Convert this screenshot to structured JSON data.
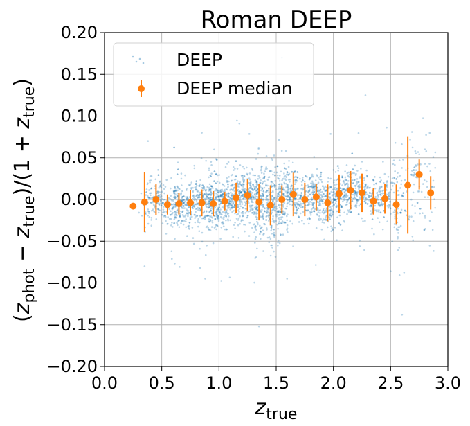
{
  "chart_data": {
    "type": "scatter",
    "title": "Roman DEEP",
    "xlabel": {
      "base": "z",
      "sub": "true"
    },
    "ylabel": {
      "parts": [
        {
          "t": "("
        },
        {
          "t": "z",
          "i": true
        },
        {
          "t": "phot",
          "sub": true
        },
        {
          "t": " − "
        },
        {
          "t": "z",
          "i": true
        },
        {
          "t": "true",
          "sub": true
        },
        {
          "t": ")/(1 + "
        },
        {
          "t": "z",
          "i": true
        },
        {
          "t": "true",
          "sub": true
        },
        {
          "t": ")"
        }
      ]
    },
    "xlim": [
      0.0,
      3.0
    ],
    "ylim": [
      -0.2,
      0.2
    ],
    "x_ticks": [
      0.0,
      0.5,
      1.0,
      1.5,
      2.0,
      2.5,
      3.0
    ],
    "x_tick_labels": [
      "0.0",
      "0.5",
      "1.0",
      "1.5",
      "2.0",
      "2.5",
      "3.0"
    ],
    "y_ticks": [
      0.2,
      0.15,
      0.1,
      0.05,
      0.0,
      -0.05,
      -0.1,
      -0.15,
      -0.2
    ],
    "y_tick_labels": [
      "0.20",
      "0.15",
      "0.10",
      "0.05",
      "0.00",
      "−0.05",
      "−0.10",
      "−0.15",
      "−0.20"
    ],
    "grid": true,
    "legend_position": "upper-left",
    "series": [
      {
        "name": "DEEP",
        "kind": "scatter-cloud",
        "color": "#1f77b4",
        "opacity": 0.3,
        "approx_count": 3000,
        "note_points": [
          {
            "x": 1.35,
            "y": -0.152
          },
          {
            "x": 2.6,
            "y": -0.138
          },
          {
            "x": 2.5,
            "y": -0.086
          },
          {
            "x": 0.35,
            "y": -0.08
          },
          {
            "x": 0.88,
            "y": -0.095
          },
          {
            "x": 2.28,
            "y": 0.125
          },
          {
            "x": 0.38,
            "y": 0.07
          },
          {
            "x": 0.85,
            "y": 0.08
          },
          {
            "x": 1.55,
            "y": 0.17
          },
          {
            "x": 0.4,
            "y": 0.028
          },
          {
            "x": 2.72,
            "y": 0.055
          },
          {
            "x": 2.8,
            "y": 0.06
          }
        ]
      },
      {
        "name": "DEEP median",
        "kind": "errorbar",
        "color": "#ff7f0e",
        "points": [
          {
            "x": 0.25,
            "y": -0.008,
            "err": 0.002
          },
          {
            "x": 0.35,
            "y": -0.003,
            "err": 0.036
          },
          {
            "x": 0.45,
            "y": 0.0,
            "err": 0.019
          },
          {
            "x": 0.55,
            "y": -0.006,
            "err": 0.012
          },
          {
            "x": 0.65,
            "y": -0.005,
            "err": 0.013
          },
          {
            "x": 0.75,
            "y": -0.004,
            "err": 0.015
          },
          {
            "x": 0.85,
            "y": -0.004,
            "err": 0.016
          },
          {
            "x": 0.95,
            "y": -0.005,
            "err": 0.015
          },
          {
            "x": 1.05,
            "y": -0.002,
            "err": 0.011
          },
          {
            "x": 1.15,
            "y": 0.002,
            "err": 0.018
          },
          {
            "x": 1.25,
            "y": 0.005,
            "err": 0.019
          },
          {
            "x": 1.35,
            "y": -0.003,
            "err": 0.022
          },
          {
            "x": 1.45,
            "y": -0.007,
            "err": 0.024
          },
          {
            "x": 1.55,
            "y": 0.0,
            "err": 0.017
          },
          {
            "x": 1.65,
            "y": 0.006,
            "err": 0.026
          },
          {
            "x": 1.75,
            "y": 0.0,
            "err": 0.02
          },
          {
            "x": 1.85,
            "y": 0.003,
            "err": 0.016
          },
          {
            "x": 1.95,
            "y": -0.004,
            "err": 0.022
          },
          {
            "x": 2.05,
            "y": 0.007,
            "err": 0.023
          },
          {
            "x": 2.15,
            "y": 0.011,
            "err": 0.023
          },
          {
            "x": 2.25,
            "y": 0.008,
            "err": 0.023
          },
          {
            "x": 2.35,
            "y": -0.002,
            "err": 0.016
          },
          {
            "x": 2.45,
            "y": 0.001,
            "err": 0.018
          },
          {
            "x": 2.55,
            "y": -0.006,
            "err": 0.024
          },
          {
            "x": 2.65,
            "y": 0.017,
            "err": 0.058
          },
          {
            "x": 2.75,
            "y": 0.03,
            "err": 0.018
          },
          {
            "x": 2.85,
            "y": 0.008,
            "err": 0.02
          }
        ]
      }
    ]
  }
}
